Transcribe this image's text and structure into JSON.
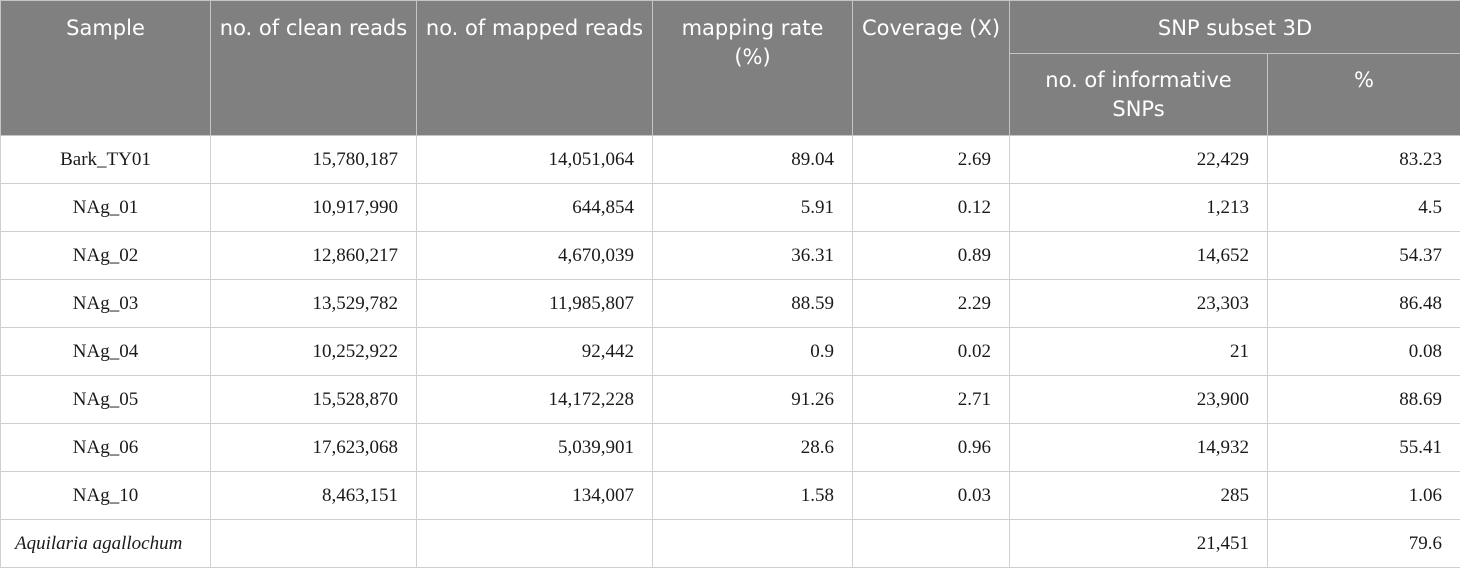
{
  "table": {
    "headers": {
      "sample": "Sample",
      "clean_reads": "no. of clean reads",
      "mapped_reads": "no. of mapped reads",
      "mapping_rate": "mapping rate (%)",
      "coverage": "Coverage (X)",
      "snp_group": "SNP subset 3D",
      "informative_snps": "no. of informative SNPs",
      "percent": "%"
    },
    "rows": [
      {
        "sample": "Bark_TY01",
        "clean_reads": "15,780,187",
        "mapped_reads": "14,051,064",
        "mapping_rate": "89.04",
        "coverage": "2.69",
        "informative_snps": "22,429",
        "percent": "83.23"
      },
      {
        "sample": "NAg_01",
        "clean_reads": "10,917,990",
        "mapped_reads": "644,854",
        "mapping_rate": "5.91",
        "coverage": "0.12",
        "informative_snps": "1,213",
        "percent": "4.5"
      },
      {
        "sample": "NAg_02",
        "clean_reads": "12,860,217",
        "mapped_reads": "4,670,039",
        "mapping_rate": "36.31",
        "coverage": "0.89",
        "informative_snps": "14,652",
        "percent": "54.37"
      },
      {
        "sample": "NAg_03",
        "clean_reads": "13,529,782",
        "mapped_reads": "11,985,807",
        "mapping_rate": "88.59",
        "coverage": "2.29",
        "informative_snps": "23,303",
        "percent": "86.48"
      },
      {
        "sample": "NAg_04",
        "clean_reads": "10,252,922",
        "mapped_reads": "92,442",
        "mapping_rate": "0.9",
        "coverage": "0.02",
        "informative_snps": "21",
        "percent": "0.08"
      },
      {
        "sample": "NAg_05",
        "clean_reads": "15,528,870",
        "mapped_reads": "14,172,228",
        "mapping_rate": "91.26",
        "coverage": "2.71",
        "informative_snps": "23,900",
        "percent": "88.69"
      },
      {
        "sample": "NAg_06",
        "clean_reads": "17,623,068",
        "mapped_reads": "5,039,901",
        "mapping_rate": "28.6",
        "coverage": "0.96",
        "informative_snps": "14,932",
        "percent": "55.41"
      },
      {
        "sample": "NAg_10",
        "clean_reads": "8,463,151",
        "mapped_reads": "134,007",
        "mapping_rate": "1.58",
        "coverage": "0.03",
        "informative_snps": "285",
        "percent": "1.06"
      },
      {
        "sample": "Aquilaria agallochum",
        "clean_reads": "",
        "mapped_reads": "",
        "mapping_rate": "",
        "coverage": "",
        "informative_snps": "21,451",
        "percent": "79.6"
      }
    ]
  }
}
